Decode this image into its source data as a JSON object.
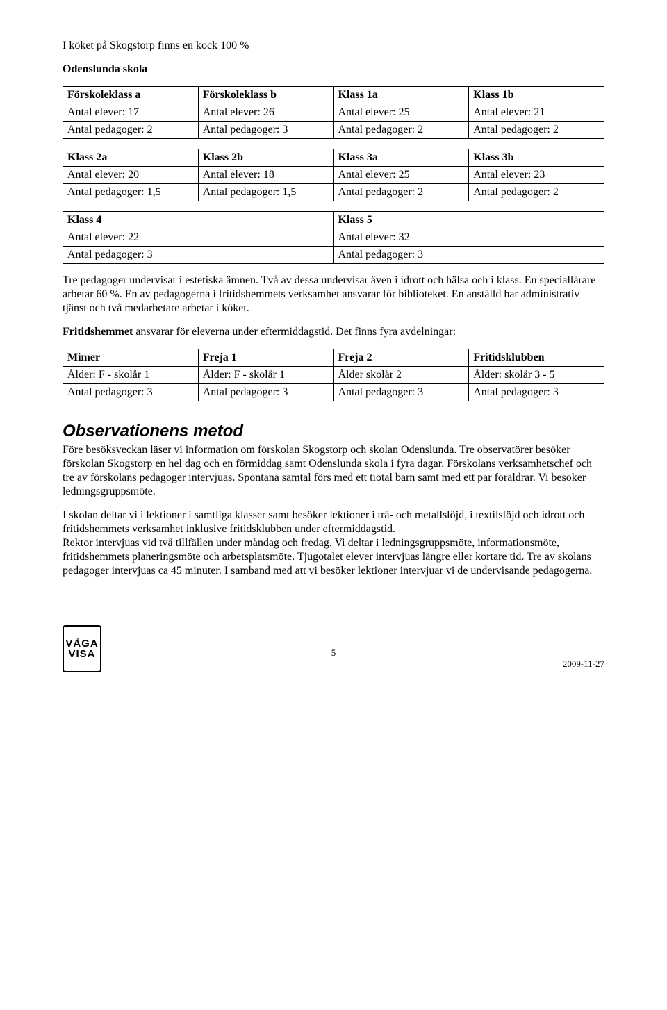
{
  "intro_line": "I köket på Skogstorp finns en kock 100 %",
  "school_heading": "Odenslunda skola",
  "table1": {
    "cols": [
      {
        "head": "Förskoleklass a",
        "r1": "Antal elever: 17",
        "r2": "Antal pedagoger: 2"
      },
      {
        "head": "Förskoleklass b",
        "r1": "Antal elever: 26",
        "r2": "Antal pedagoger: 3"
      },
      {
        "head": "Klass 1a",
        "r1": "Antal elever: 25",
        "r2": "Antal pedagoger: 2"
      },
      {
        "head": "Klass 1b",
        "r1": "Antal elever: 21",
        "r2": "Antal pedagoger: 2"
      }
    ]
  },
  "table2": {
    "cols": [
      {
        "head": "Klass 2a",
        "r1": "Antal elever: 20",
        "r2": "Antal pedagoger: 1,5"
      },
      {
        "head": "Klass 2b",
        "r1": "Antal elever: 18",
        "r2": "Antal pedagoger: 1,5"
      },
      {
        "head": "Klass 3a",
        "r1": "Antal elever: 25",
        "r2": "Antal pedagoger: 2"
      },
      {
        "head": "Klass 3b",
        "r1": "Antal elever: 23",
        "r2": "Antal pedagoger: 2"
      }
    ]
  },
  "table3": {
    "cols": [
      {
        "head": "Klass 4",
        "r1": "Antal elever: 22",
        "r2": "Antal pedagoger: 3"
      },
      {
        "head": "Klass 5",
        "r1": "Antal elever: 32",
        "r2": "Antal pedagoger: 3"
      }
    ]
  },
  "para_after_tables": "Tre pedagoger undervisar i estetiska ämnen. Två av dessa undervisar även i idrott och hälsa och i klass. En speciallärare arbetar 60 %. En av pedagogerna i fritidshemmets verksamhet ansvarar för biblioteket. En anställd har administrativ tjänst och två medarbetare arbetar i köket.",
  "fritid_line_pre": "Fritidshemmet",
  "fritid_line_post": " ansvarar för eleverna under eftermiddagstid. Det finns fyra avdelningar:",
  "table4": {
    "cols": [
      {
        "head": "Mimer",
        "r1": "Ålder: F - skolår 1",
        "r2": "Antal pedagoger: 3"
      },
      {
        "head": "Freja 1",
        "r1": "Ålder: F - skolår 1",
        "r2": "Antal pedagoger: 3"
      },
      {
        "head": "Freja 2",
        "r1": "Ålder skolår 2",
        "r2": "Antal pedagoger: 3"
      },
      {
        "head": "Fritidsklubben",
        "r1": "Ålder: skolår 3 - 5",
        "r2": "Antal pedagoger: 3"
      }
    ]
  },
  "section_heading": "Observationens metod",
  "obs_p1": "Före besöksveckan läser vi information om förskolan Skogstorp och skolan Odenslunda. Tre observatörer besöker förskolan Skogstorp en hel dag och en förmiddag samt Odenslunda skola i fyra dagar. Förskolans verksamhetschef och tre av förskolans pedagoger intervjuas. Spontana samtal förs med ett tiotal barn samt med ett par föräldrar. Vi besöker ledningsgruppsmöte.",
  "obs_p2": "I skolan deltar vi i lektioner i samtliga klasser samt besöker lektioner i trä- och metallslöjd, i textilslöjd och idrott och fritidshemmets verksamhet inklusive fritidsklubben under eftermiddagstid.",
  "obs_p3": "Rektor intervjuas vid två tillfällen under måndag och fredag. Vi deltar i ledningsgruppsmöte, informationsmöte, fritidshemmets planeringsmöte och arbetsplatsmöte. Tjugotalet elever intervjuas längre eller kortare tid. Tre av skolans pedagoger intervjuas ca 45 minuter. I samband med att vi besöker lektioner intervjuar vi de undervisande pedagogerna.",
  "footer": {
    "page": "5",
    "date": "2009-11-27",
    "logo_l1": "VÅGA",
    "logo_l2": "VISA"
  }
}
